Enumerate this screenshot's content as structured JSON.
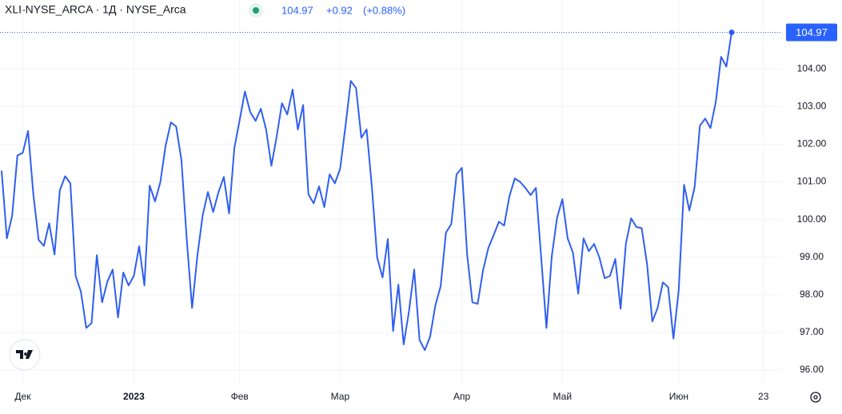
{
  "chart_data": {
    "type": "line",
    "header": {
      "symbol": "XLI-NYSE_ARCA · 1Д · NYSE_Arca",
      "price": "104.97",
      "change": "+0.92",
      "change_pct": "(+0.88%)"
    },
    "categories": [
      null,
      null,
      null,
      null,
      "Дек",
      null,
      null,
      null,
      null,
      null,
      null,
      null,
      null,
      null,
      null,
      null,
      null,
      null,
      null,
      null,
      null,
      null,
      null,
      null,
      null,
      "2023",
      null,
      null,
      null,
      null,
      null,
      null,
      null,
      null,
      null,
      null,
      null,
      null,
      null,
      null,
      null,
      null,
      null,
      null,
      null,
      "Фев",
      null,
      null,
      null,
      null,
      null,
      null,
      null,
      null,
      null,
      null,
      null,
      null,
      null,
      null,
      null,
      null,
      null,
      null,
      "Мар",
      null,
      null,
      null,
      null,
      null,
      null,
      null,
      null,
      null,
      null,
      null,
      null,
      null,
      null,
      null,
      null,
      null,
      null,
      null,
      null,
      null,
      null,
      "Апр",
      null,
      null,
      null,
      null,
      null,
      null,
      null,
      null,
      null,
      null,
      null,
      null,
      null,
      null,
      null,
      null,
      null,
      null,
      "Май",
      null,
      null,
      null,
      null,
      null,
      null,
      null,
      null,
      null,
      null,
      null,
      null,
      null,
      null,
      null,
      null,
      null,
      null,
      null,
      null,
      null,
      "Июн",
      null,
      null,
      null,
      null,
      null,
      null,
      null,
      null,
      null,
      null,
      null,
      null,
      null,
      null,
      null,
      "23"
    ],
    "series": [
      {
        "name": "XLI",
        "color": "#2f5ff0",
        "values": [
          101.3,
          99.5,
          100.1,
          101.7,
          101.77,
          102.35,
          100.67,
          99.46,
          99.3,
          99.9,
          99.07,
          100.77,
          101.15,
          100.96,
          98.5,
          98.08,
          97.12,
          97.25,
          99.05,
          97.8,
          98.35,
          98.67,
          97.4,
          98.59,
          98.25,
          98.5,
          99.29,
          98.25,
          100.9,
          100.48,
          100.99,
          101.96,
          102.58,
          102.47,
          101.58,
          99.46,
          97.65,
          99.03,
          100.1,
          100.73,
          100.2,
          100.73,
          101.13,
          100.16,
          101.9,
          102.64,
          103.4,
          102.85,
          102.62,
          102.94,
          102.39,
          101.43,
          102.2,
          103.09,
          102.79,
          103.45,
          102.39,
          103.04,
          100.67,
          100.43,
          100.88,
          100.33,
          101.2,
          100.96,
          101.35,
          102.47,
          103.68,
          103.49,
          102.17,
          102.39,
          100.86,
          98.99,
          98.46,
          99.48,
          97.04,
          98.27,
          96.68,
          97.55,
          98.67,
          96.8,
          96.53,
          96.89,
          97.72,
          98.23,
          99.65,
          99.88,
          101.2,
          101.37,
          99.07,
          97.8,
          97.76,
          98.65,
          99.24,
          99.58,
          99.94,
          99.84,
          100.62,
          101.09,
          101.0,
          100.84,
          100.65,
          100.84,
          98.99,
          97.12,
          99.03,
          100.05,
          100.54,
          99.5,
          99.12,
          98.03,
          99.5,
          99.16,
          99.35,
          98.99,
          98.44,
          98.5,
          98.95,
          97.63,
          99.35,
          100.03,
          99.8,
          99.77,
          98.82,
          97.29,
          97.65,
          98.33,
          98.2,
          96.84,
          98.12,
          100.92,
          100.24,
          100.86,
          102.49,
          102.68,
          102.43,
          103.13,
          104.32,
          104.06,
          104.97,
          null,
          null,
          null,
          null,
          null,
          null
        ]
      }
    ],
    "last_price": {
      "value": 104.97,
      "label": "104.97"
    },
    "ylim": [
      95.64,
      105.83
    ],
    "yticks": [
      {
        "value": 96,
        "label": "96.00"
      },
      {
        "value": 97,
        "label": "97.00"
      },
      {
        "value": 98,
        "label": "98.00"
      },
      {
        "value": 99,
        "label": "99.00"
      },
      {
        "value": 100,
        "label": "100.00"
      },
      {
        "value": 101,
        "label": "101.00"
      },
      {
        "value": 102,
        "label": "102.00"
      },
      {
        "value": 103,
        "label": "103.00"
      },
      {
        "value": 104,
        "label": "104.00"
      }
    ],
    "grid": true
  }
}
